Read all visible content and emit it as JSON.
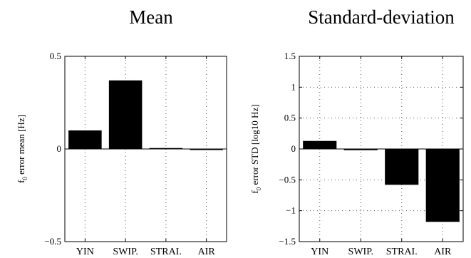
{
  "chart_data": [
    {
      "type": "bar",
      "title": "Mean",
      "ylabel_main": "f",
      "ylabel_sub": "0",
      "ylabel_rest": " error mean [Hz]",
      "categories": [
        "YIN",
        "SWIP.",
        "STRAI.",
        "AIR"
      ],
      "values": [
        0.1,
        0.37,
        0.005,
        -0.005
      ],
      "ylim": [
        -0.5,
        0.5
      ],
      "yticks": [
        -0.5,
        0,
        0.5
      ],
      "ytick_labels": [
        "−0.5",
        "0",
        "0.5"
      ],
      "grid": "dotted"
    },
    {
      "type": "bar",
      "title": "Standard-deviation",
      "ylabel_main": "f",
      "ylabel_sub": "0",
      "ylabel_rest": " error STD [log10 Hz]",
      "categories": [
        "YIN",
        "SWIP.",
        "STRAI.",
        "AIR"
      ],
      "values": [
        0.13,
        -0.02,
        -0.58,
        -1.18
      ],
      "ylim": [
        -1.5,
        1.5
      ],
      "yticks": [
        -1.5,
        -1,
        -0.5,
        0,
        0.5,
        1,
        1.5
      ],
      "ytick_labels": [
        "−1.5",
        "−1",
        "−0.5",
        "0",
        "0.5",
        "1",
        "1.5"
      ],
      "grid": "dotted"
    }
  ],
  "colors": {
    "bar": "#000000",
    "axis": "#000000",
    "grid": "#555555"
  }
}
